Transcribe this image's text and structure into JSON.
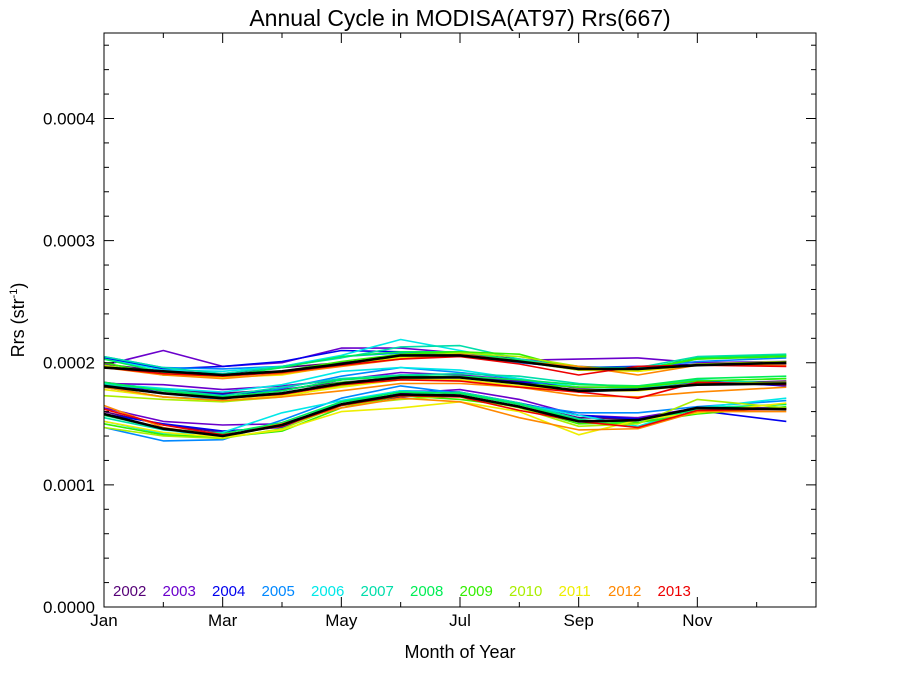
{
  "chart_data": {
    "type": "line",
    "title": "Annual Cycle in MODISA(AT97) Rrs(667)",
    "xlabel": "Month of Year",
    "ylabel_main": "Rrs (str",
    "ylabel_sup": "-1",
    "ylabel_close": ")",
    "xlim": [
      0,
      12
    ],
    "ylim": [
      0,
      0.00047
    ],
    "x_ticks": [
      {
        "value": 0,
        "label": "Jan"
      },
      {
        "value": 2,
        "label": "Mar"
      },
      {
        "value": 4,
        "label": "May"
      },
      {
        "value": 6,
        "label": "Jul"
      },
      {
        "value": 8,
        "label": "Sep"
      },
      {
        "value": 10,
        "label": "Nov"
      }
    ],
    "y_ticks": [
      {
        "value": 0,
        "label": "0.0000"
      },
      {
        "value": 0.0001,
        "label": "0.0001"
      },
      {
        "value": 0.0002,
        "label": "0.0002"
      },
      {
        "value": 0.0003,
        "label": "0.0003"
      },
      {
        "value": 0.0004,
        "label": "0.0004"
      }
    ],
    "x": [
      0,
      1,
      2,
      3,
      4,
      5,
      6,
      7,
      8,
      9,
      10,
      11.5
    ],
    "legend_position": "bottom-left",
    "grid": false,
    "series": [
      {
        "name": "2002",
        "color": "#550077",
        "group": "upper",
        "values": [
          0.000199,
          0.000193,
          0.000191,
          0.000196,
          0.0002,
          0.000205,
          0.000208,
          0.000203,
          0.000197,
          0.000195,
          0.000198,
          0.000201
        ]
      },
      {
        "name": "2002",
        "color": "#550077",
        "group": "middle",
        "values": [
          0.000184,
          0.000178,
          0.000175,
          0.000178,
          0.000184,
          0.000188,
          0.000189,
          0.000185,
          0.00018,
          0.00018,
          0.000183,
          0.000185
        ]
      },
      {
        "name": "2002",
        "color": "#550077",
        "group": "lower",
        "values": [
          0.00016,
          0.000149,
          0.000143,
          0.000149,
          0.000165,
          0.000172,
          0.000175,
          0.000166,
          0.000155,
          0.000154,
          0.000162,
          0.000162
        ]
      },
      {
        "name": "2003",
        "color": "#6a00cc",
        "group": "upper",
        "values": [
          0.000198,
          0.00021,
          0.000197,
          0.0002,
          0.000212,
          0.000212,
          0.000208,
          0.000202,
          0.000203,
          0.000204,
          0.0002,
          0.000201
        ]
      },
      {
        "name": "2003",
        "color": "#6a00cc",
        "group": "middle",
        "values": [
          0.000183,
          0.000182,
          0.000178,
          0.000181,
          0.000186,
          0.000192,
          0.00019,
          0.000186,
          0.000179,
          0.000181,
          0.000184,
          0.000183
        ]
      },
      {
        "name": "2003",
        "color": "#6a00cc",
        "group": "lower",
        "values": [
          0.000163,
          0.000152,
          0.000149,
          0.00015,
          0.000165,
          0.000175,
          0.000178,
          0.00017,
          0.000157,
          0.000155,
          0.000163,
          0.000163
        ]
      },
      {
        "name": "2004",
        "color": "#0000ee",
        "group": "upper",
        "values": [
          0.000204,
          0.000195,
          0.000197,
          0.000201,
          0.00021,
          0.000209,
          0.000207,
          0.0002,
          0.000196,
          0.000197,
          0.000199,
          0.000199
        ]
      },
      {
        "name": "2004",
        "color": "#0000ee",
        "group": "middle",
        "values": [
          0.000182,
          0.000177,
          0.000174,
          0.000177,
          0.000186,
          0.00019,
          0.000188,
          0.000184,
          0.00018,
          0.000179,
          0.000185,
          0.000181
        ]
      },
      {
        "name": "2004",
        "color": "#0000ee",
        "group": "lower",
        "values": [
          0.000158,
          0.00015,
          0.000144,
          0.000147,
          0.000168,
          0.000177,
          0.000176,
          0.000167,
          0.000157,
          0.000154,
          0.000161,
          0.000152
        ]
      },
      {
        "name": "2005",
        "color": "#0088ff",
        "group": "upper",
        "values": [
          0.000205,
          0.000196,
          0.000195,
          0.000197,
          0.000205,
          0.000208,
          0.000206,
          0.0002,
          0.000196,
          0.000196,
          0.000201,
          0.000204
        ]
      },
      {
        "name": "2005",
        "color": "#0088ff",
        "group": "middle",
        "values": [
          0.00018,
          0.000172,
          0.00017,
          0.000179,
          0.000189,
          0.000196,
          0.000192,
          0.000187,
          0.000176,
          0.000178,
          0.000183,
          0.000184
        ]
      },
      {
        "name": "2005",
        "color": "#0088ff",
        "group": "lower",
        "values": [
          0.000147,
          0.000136,
          0.000137,
          0.000153,
          0.000171,
          0.000181,
          0.000175,
          0.000166,
          0.000159,
          0.000159,
          0.000164,
          0.000169
        ]
      },
      {
        "name": "2006",
        "color": "#00e8e8",
        "group": "upper",
        "values": [
          0.000203,
          0.000194,
          0.000193,
          0.000197,
          0.000206,
          0.000219,
          0.00021,
          0.000201,
          0.000194,
          0.000195,
          0.000203,
          0.000206
        ]
      },
      {
        "name": "2006",
        "color": "#00e8e8",
        "group": "middle",
        "values": [
          0.000183,
          0.000179,
          0.000176,
          0.000182,
          0.000193,
          0.000196,
          0.000194,
          0.000187,
          0.00018,
          0.000179,
          0.000185,
          0.000187
        ]
      },
      {
        "name": "2006",
        "color": "#00e8e8",
        "group": "lower",
        "values": [
          0.000152,
          0.000142,
          0.000143,
          0.000159,
          0.000169,
          0.000177,
          0.000175,
          0.000166,
          0.000157,
          0.000148,
          0.000163,
          0.000171
        ]
      },
      {
        "name": "2007",
        "color": "#00ddaa",
        "group": "upper",
        "values": [
          0.000205,
          0.000196,
          0.000191,
          0.000197,
          0.000204,
          0.000213,
          0.000214,
          0.000203,
          0.000196,
          0.000196,
          0.000205,
          0.000207
        ]
      },
      {
        "name": "2007",
        "color": "#00ddaa",
        "group": "middle",
        "values": [
          0.000182,
          0.000178,
          0.000173,
          0.00018,
          0.000187,
          0.00019,
          0.000191,
          0.000189,
          0.000183,
          0.00018,
          0.000186,
          0.000183
        ]
      },
      {
        "name": "2007",
        "color": "#00ddaa",
        "group": "lower",
        "values": [
          0.000155,
          0.000145,
          0.000141,
          0.000148,
          0.000168,
          0.000174,
          0.000176,
          0.000167,
          0.000154,
          0.000147,
          0.000163,
          0.000166
        ]
      },
      {
        "name": "2008",
        "color": "#00ee55",
        "group": "upper",
        "values": [
          0.000203,
          0.000192,
          0.000189,
          0.000196,
          0.000205,
          0.000209,
          0.000209,
          0.000202,
          0.000195,
          0.000194,
          0.000204,
          0.000206
        ]
      },
      {
        "name": "2008",
        "color": "#00ee55",
        "group": "middle",
        "values": [
          0.000184,
          0.000177,
          0.000172,
          0.000177,
          0.000186,
          0.000189,
          0.000189,
          0.000186,
          0.000182,
          0.000181,
          0.000187,
          0.000189
        ]
      },
      {
        "name": "2008",
        "color": "#00ee55",
        "group": "lower",
        "values": [
          0.000157,
          0.000146,
          0.000142,
          0.000151,
          0.000168,
          0.000176,
          0.000175,
          0.000166,
          0.000153,
          0.000151,
          0.000162,
          0.000166
        ]
      },
      {
        "name": "2009",
        "color": "#33ee00",
        "group": "upper",
        "values": [
          0.0002,
          0.00019,
          0.000189,
          0.000193,
          0.000201,
          0.000207,
          0.000209,
          0.000207,
          0.000194,
          0.000194,
          0.000203,
          0.000205
        ]
      },
      {
        "name": "2009",
        "color": "#33ee00",
        "group": "middle",
        "values": [
          0.00018,
          0.000175,
          0.000171,
          0.000175,
          0.000184,
          0.000187,
          0.000188,
          0.000183,
          0.00018,
          0.00018,
          0.000185,
          0.000187
        ]
      },
      {
        "name": "2009",
        "color": "#33ee00",
        "group": "lower",
        "values": [
          0.00015,
          0.000141,
          0.000139,
          0.000144,
          0.000163,
          0.000173,
          0.00017,
          0.000164,
          0.00015,
          0.000151,
          0.000158,
          0.000164
        ]
      },
      {
        "name": "2010",
        "color": "#aaee00",
        "group": "upper",
        "values": [
          0.000198,
          0.00019,
          0.00019,
          0.000192,
          0.000199,
          0.000205,
          0.000208,
          0.000205,
          0.000197,
          0.000193,
          0.000199,
          0.000201
        ]
      },
      {
        "name": "2010",
        "color": "#aaee00",
        "group": "middle",
        "values": [
          0.000173,
          0.00017,
          0.000168,
          0.000172,
          0.000181,
          0.000186,
          0.000186,
          0.000181,
          0.000178,
          0.000178,
          0.000183,
          0.000184
        ]
      },
      {
        "name": "2010",
        "color": "#aaee00",
        "group": "lower",
        "values": [
          0.000147,
          0.00014,
          0.000138,
          0.000146,
          0.000165,
          0.00017,
          0.000173,
          0.000163,
          0.000148,
          0.00015,
          0.00017,
          0.000163
        ]
      },
      {
        "name": "2011",
        "color": "#eeee00",
        "group": "upper",
        "values": [
          0.000197,
          0.000191,
          0.000188,
          0.00019,
          0.000198,
          0.000204,
          0.000206,
          0.000201,
          0.000194,
          0.000193,
          0.000198,
          0.0002
        ]
      },
      {
        "name": "2011",
        "color": "#eeee00",
        "group": "middle",
        "values": [
          0.000178,
          0.000172,
          0.000169,
          0.000173,
          0.00018,
          0.000186,
          0.000186,
          0.000181,
          0.000177,
          0.000177,
          0.000182,
          0.000183
        ]
      },
      {
        "name": "2011",
        "color": "#eeee00",
        "group": "lower",
        "values": [
          0.000152,
          0.000143,
          0.000139,
          0.000145,
          0.00016,
          0.000163,
          0.000168,
          0.00016,
          0.000141,
          0.000153,
          0.000159,
          0.000167
        ]
      },
      {
        "name": "2012",
        "color": "#ff8800",
        "group": "upper",
        "values": [
          0.000196,
          0.00019,
          0.000187,
          0.000191,
          0.000197,
          0.000203,
          0.000207,
          0.000201,
          0.000197,
          0.00019,
          0.000198,
          0.000198
        ]
      },
      {
        "name": "2012",
        "color": "#ff8800",
        "group": "middle",
        "values": [
          0.00018,
          0.000172,
          0.000169,
          0.000172,
          0.000177,
          0.000183,
          0.000183,
          0.00018,
          0.000173,
          0.000172,
          0.000176,
          0.00018
        ]
      },
      {
        "name": "2012",
        "color": "#ff8800",
        "group": "lower",
        "values": [
          0.000165,
          0.000147,
          0.00014,
          0.00015,
          0.000163,
          0.000171,
          0.000168,
          0.000155,
          0.000145,
          0.000146,
          0.00016,
          0.00016
        ]
      },
      {
        "name": "2013",
        "color": "#ee0000",
        "group": "upper",
        "values": [
          0.000196,
          0.000191,
          0.000189,
          0.000192,
          0.000198,
          0.000203,
          0.000205,
          0.000199,
          0.00019,
          0.000197,
          0.000198,
          0.000197
        ]
      },
      {
        "name": "2013",
        "color": "#ee0000",
        "group": "middle",
        "values": [
          0.000181,
          0.000175,
          0.000171,
          0.000174,
          0.000182,
          0.000186,
          0.000185,
          0.00018,
          0.000176,
          0.000171,
          0.000184,
          0.000182
        ]
      },
      {
        "name": "2013",
        "color": "#ee0000",
        "group": "lower",
        "values": [
          0.000162,
          0.000149,
          0.000141,
          0.000148,
          0.000165,
          0.000173,
          0.000172,
          0.000161,
          0.000152,
          0.000147,
          0.000161,
          0.000162
        ]
      },
      {
        "name": "",
        "color": "#000000",
        "group": "mean",
        "values": [
          0.000196,
          0.000193,
          0.00019,
          0.000193,
          0.000199,
          0.000206,
          0.000206,
          0.000201,
          0.000195,
          0.000195,
          0.000198,
          0.0002
        ]
      },
      {
        "name": "",
        "color": "#000000",
        "group": "mean",
        "values": [
          0.000181,
          0.000175,
          0.000171,
          0.000175,
          0.000183,
          0.000188,
          0.000188,
          0.000183,
          0.000177,
          0.000178,
          0.000182,
          0.000183
        ]
      },
      {
        "name": "",
        "color": "#000000",
        "group": "mean",
        "values": [
          0.000158,
          0.000146,
          0.00014,
          0.000149,
          0.000166,
          0.000174,
          0.000173,
          0.000164,
          0.000152,
          0.000153,
          0.000163,
          0.000162
        ]
      }
    ],
    "legend": [
      {
        "label": "2002",
        "color": "#550077"
      },
      {
        "label": "2003",
        "color": "#6a00cc"
      },
      {
        "label": "2004",
        "color": "#0000ee"
      },
      {
        "label": "2005",
        "color": "#0088ff"
      },
      {
        "label": "2006",
        "color": "#00e8e8"
      },
      {
        "label": "2007",
        "color": "#00ddaa"
      },
      {
        "label": "2008",
        "color": "#00ee55"
      },
      {
        "label": "2009",
        "color": "#33ee00"
      },
      {
        "label": "2010",
        "color": "#aaee00"
      },
      {
        "label": "2011",
        "color": "#eeee00"
      },
      {
        "label": "2012",
        "color": "#ff8800"
      },
      {
        "label": "2013",
        "color": "#ee0000"
      }
    ]
  }
}
